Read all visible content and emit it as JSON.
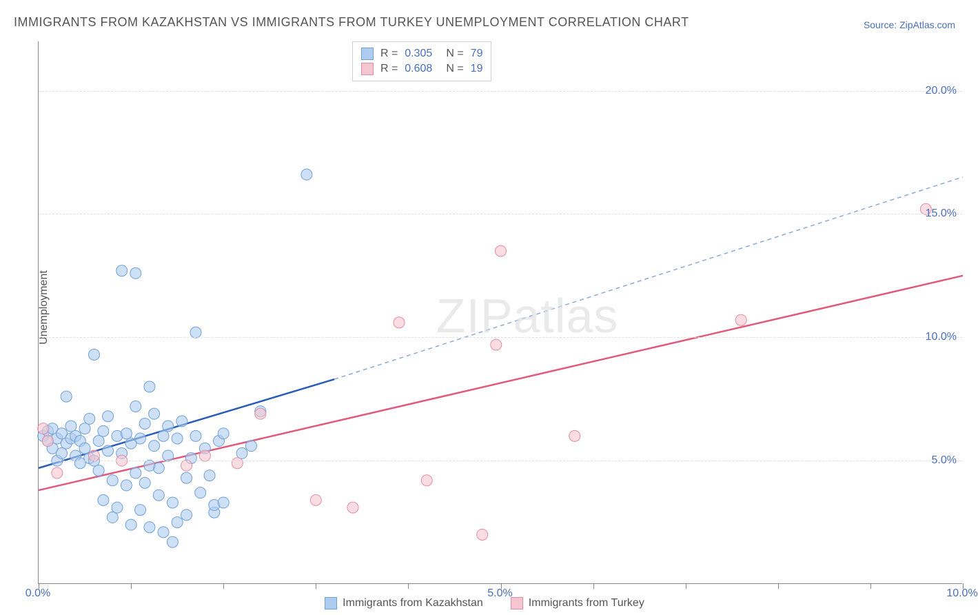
{
  "title": "IMMIGRANTS FROM KAZAKHSTAN VS IMMIGRANTS FROM TURKEY UNEMPLOYMENT CORRELATION CHART",
  "source_label": "Source: ZipAtlas.com",
  "ylabel": "Unemployment",
  "watermark": "ZIPatlas",
  "chart": {
    "type": "scatter",
    "xlim": [
      0,
      10
    ],
    "ylim": [
      0,
      22
    ],
    "ytick_values": [
      5,
      10,
      15,
      20
    ],
    "ytick_labels": [
      "5.0%",
      "10.0%",
      "15.0%",
      "20.0%"
    ],
    "xtick_values": [
      0,
      5,
      10
    ],
    "xtick_labels": [
      "0.0%",
      "5.0%",
      "10.0%"
    ],
    "xtick_minor": [
      1,
      2,
      3,
      4,
      6,
      7,
      8,
      9
    ],
    "grid_color": "#e0e0e0",
    "background_color": "#ffffff",
    "series": [
      {
        "name": "Immigrants from Kazakhstan",
        "color_fill": "#aeccf0",
        "color_stroke": "#6fa0da",
        "trend_color": "#2a5db8",
        "trend_dash_color": "#8fa8d8",
        "R": "0.305",
        "N": "79",
        "trend_solid": {
          "x1": 0,
          "y1": 4.7,
          "x2": 3.2,
          "y2": 8.3
        },
        "trend_dash": {
          "x1": 3.2,
          "y1": 8.3,
          "x2": 10,
          "y2": 16.5
        },
        "points": [
          [
            0.05,
            6.0
          ],
          [
            0.1,
            5.8
          ],
          [
            0.1,
            6.2
          ],
          [
            0.15,
            5.5
          ],
          [
            0.15,
            6.3
          ],
          [
            0.2,
            5.9
          ],
          [
            0.2,
            5.0
          ],
          [
            0.25,
            6.1
          ],
          [
            0.25,
            5.3
          ],
          [
            0.3,
            7.6
          ],
          [
            0.3,
            5.7
          ],
          [
            0.35,
            5.9
          ],
          [
            0.35,
            6.4
          ],
          [
            0.4,
            5.2
          ],
          [
            0.4,
            6.0
          ],
          [
            0.45,
            5.8
          ],
          [
            0.45,
            4.9
          ],
          [
            0.5,
            6.3
          ],
          [
            0.5,
            5.5
          ],
          [
            0.55,
            5.1
          ],
          [
            0.55,
            6.7
          ],
          [
            0.6,
            5.0
          ],
          [
            0.6,
            9.3
          ],
          [
            0.65,
            5.8
          ],
          [
            0.65,
            4.6
          ],
          [
            0.7,
            6.2
          ],
          [
            0.7,
            3.4
          ],
          [
            0.75,
            5.4
          ],
          [
            0.75,
            6.8
          ],
          [
            0.8,
            4.2
          ],
          [
            0.8,
            2.7
          ],
          [
            0.85,
            6.0
          ],
          [
            0.85,
            3.1
          ],
          [
            0.9,
            5.3
          ],
          [
            0.9,
            12.7
          ],
          [
            0.95,
            4.0
          ],
          [
            0.95,
            6.1
          ],
          [
            1.0,
            5.7
          ],
          [
            1.0,
            2.4
          ],
          [
            1.05,
            7.2
          ],
          [
            1.05,
            4.5
          ],
          [
            1.05,
            12.6
          ],
          [
            1.1,
            5.9
          ],
          [
            1.1,
            3.0
          ],
          [
            1.15,
            6.5
          ],
          [
            1.15,
            4.1
          ],
          [
            1.2,
            8.0
          ],
          [
            1.2,
            2.3
          ],
          [
            1.25,
            5.6
          ],
          [
            1.25,
            6.9
          ],
          [
            1.3,
            4.7
          ],
          [
            1.3,
            3.6
          ],
          [
            1.35,
            6.0
          ],
          [
            1.35,
            2.1
          ],
          [
            1.4,
            5.2
          ],
          [
            1.4,
            6.4
          ],
          [
            1.45,
            3.3
          ],
          [
            1.45,
            1.7
          ],
          [
            1.5,
            5.9
          ],
          [
            1.5,
            2.5
          ],
          [
            1.55,
            6.6
          ],
          [
            1.6,
            4.3
          ],
          [
            1.6,
            2.8
          ],
          [
            1.65,
            5.1
          ],
          [
            1.7,
            6.0
          ],
          [
            1.7,
            10.2
          ],
          [
            1.75,
            3.7
          ],
          [
            1.8,
            5.5
          ],
          [
            1.85,
            4.4
          ],
          [
            1.9,
            2.9
          ],
          [
            1.9,
            3.2
          ],
          [
            1.95,
            5.8
          ],
          [
            2.0,
            3.3
          ],
          [
            2.0,
            6.1
          ],
          [
            2.2,
            5.3
          ],
          [
            2.3,
            5.6
          ],
          [
            2.4,
            7.0
          ],
          [
            2.9,
            16.6
          ],
          [
            1.2,
            4.8
          ]
        ]
      },
      {
        "name": "Immigrants from Turkey",
        "color_fill": "#f5c6d1",
        "color_stroke": "#e48ca2",
        "trend_color": "#e05a7d",
        "R": "0.608",
        "N": "19",
        "trend_solid": {
          "x1": 0,
          "y1": 3.8,
          "x2": 10,
          "y2": 12.5
        },
        "points": [
          [
            0.05,
            6.3
          ],
          [
            0.1,
            5.8
          ],
          [
            0.2,
            4.5
          ],
          [
            0.6,
            5.2
          ],
          [
            0.9,
            5.0
          ],
          [
            1.6,
            4.8
          ],
          [
            1.8,
            5.2
          ],
          [
            2.15,
            4.9
          ],
          [
            2.4,
            6.9
          ],
          [
            3.0,
            3.4
          ],
          [
            3.4,
            3.1
          ],
          [
            3.9,
            10.6
          ],
          [
            4.2,
            4.2
          ],
          [
            4.8,
            2.0
          ],
          [
            4.95,
            9.7
          ],
          [
            5.0,
            13.5
          ],
          [
            5.8,
            6.0
          ],
          [
            7.6,
            10.7
          ],
          [
            9.6,
            15.2
          ]
        ]
      }
    ]
  },
  "top_legend": {
    "rows": [
      {
        "swatch_fill": "#aeccf0",
        "swatch_stroke": "#6fa0da",
        "R_label": "R =",
        "R": "0.305",
        "N_label": "N =",
        "N": "79"
      },
      {
        "swatch_fill": "#f5c6d1",
        "swatch_stroke": "#e48ca2",
        "R_label": "R =",
        "R": "0.608",
        "N_label": "N =",
        "N": "19"
      }
    ]
  },
  "bottom_legend": {
    "items": [
      {
        "swatch_fill": "#aeccf0",
        "swatch_stroke": "#6fa0da",
        "label": "Immigrants from Kazakhstan"
      },
      {
        "swatch_fill": "#f5c6d1",
        "swatch_stroke": "#e48ca2",
        "label": "Immigrants from Turkey"
      }
    ]
  }
}
